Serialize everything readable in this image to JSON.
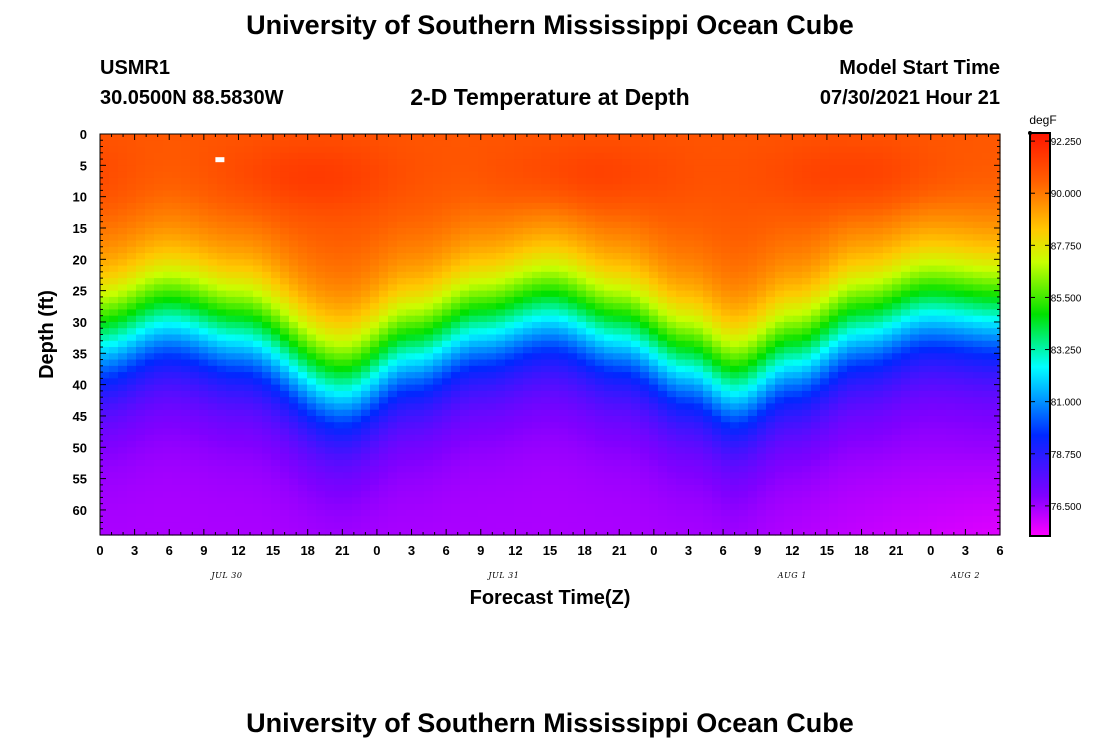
{
  "title_top": "University of Southern Mississippi Ocean Cube",
  "title_bottom": "University of Southern Mississippi Ocean Cube",
  "station": {
    "name": "USMR1",
    "coords": "30.0500N  88.5830W"
  },
  "plot_title": "2-D Temperature at Depth",
  "model_start": {
    "label": "Model Start Time",
    "value": "07/30/2021 Hour 21"
  },
  "colorbar": {
    "unit": "degF",
    "min": 75.2,
    "max": 92.6,
    "ticks": [
      "92.250",
      "90.000",
      "87.750",
      "85.500",
      "83.250",
      "81.000",
      "78.750",
      "76.500"
    ],
    "tick_values": [
      92.25,
      90.0,
      87.75,
      85.5,
      83.25,
      81.0,
      78.75,
      76.5
    ]
  },
  "chart_data": {
    "type": "heatmap",
    "title": "2-D Temperature at Depth",
    "xlabel": "Forecast Time(Z)",
    "ylabel": "Depth (ft)",
    "x_hours_range": [
      0,
      78
    ],
    "y_range": [
      0,
      64
    ],
    "x_tick_labels": [
      "0",
      "3",
      "6",
      "9",
      "12",
      "15",
      "18",
      "21",
      "0",
      "3",
      "6",
      "9",
      "12",
      "15",
      "18",
      "21",
      "0",
      "3",
      "6",
      "9",
      "12",
      "15",
      "18",
      "21",
      "0",
      "3",
      "6"
    ],
    "x_tick_hours": [
      0,
      3,
      6,
      9,
      12,
      15,
      18,
      21,
      24,
      27,
      30,
      33,
      36,
      39,
      42,
      45,
      48,
      51,
      54,
      57,
      60,
      63,
      66,
      69,
      72,
      75,
      78
    ],
    "date_labels": [
      {
        "text": "JUL 30",
        "hour": 11
      },
      {
        "text": "JUL 31",
        "hour": 35
      },
      {
        "text": "AUG 1",
        "hour": 60
      },
      {
        "text": "AUG 2",
        "hour": 75
      }
    ],
    "y_tick_labels": [
      "0",
      "5",
      "10",
      "15",
      "20",
      "25",
      "30",
      "35",
      "40",
      "45",
      "50",
      "55",
      "60"
    ],
    "y_tick_values": [
      0,
      5,
      10,
      15,
      20,
      25,
      30,
      35,
      40,
      45,
      50,
      55,
      60
    ],
    "thermocline_depth_ft": [
      [
        0,
        23
      ],
      [
        6,
        19.5
      ],
      [
        12,
        22
      ],
      [
        21,
        30.5
      ],
      [
        27,
        25
      ],
      [
        33,
        21
      ],
      [
        39,
        18.5
      ],
      [
        45,
        22
      ],
      [
        51,
        27
      ],
      [
        55,
        30.5
      ],
      [
        60,
        26
      ],
      [
        66,
        21
      ],
      [
        72,
        18
      ],
      [
        78,
        19
      ]
    ],
    "surface_temp_degF": 90.8,
    "deep_temp_degF": 76.3
  }
}
